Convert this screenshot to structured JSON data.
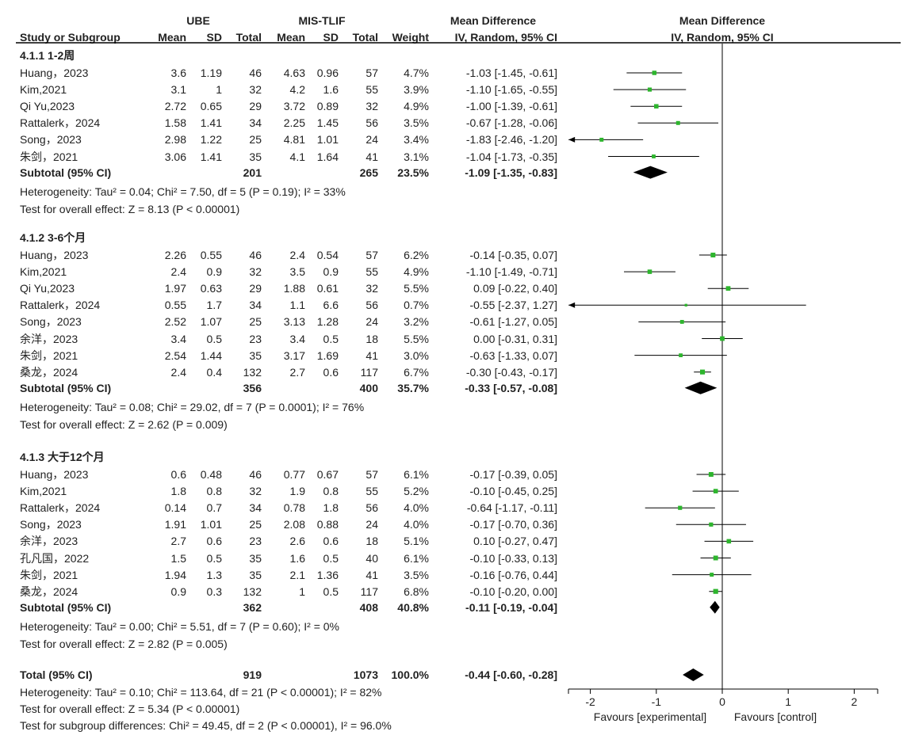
{
  "header": {
    "ube": "UBE",
    "mis": "MIS-TLIF",
    "md": "Mean Difference",
    "md_plot": "Mean Difference",
    "study": "Study or Subgroup",
    "mean1": "Mean",
    "sd1": "SD",
    "total1": "Total",
    "mean2": "Mean",
    "sd2": "SD",
    "total2": "Total",
    "weight": "Weight",
    "method": "IV, Random, 95% CI",
    "method_plot": "IV, Random, 95% CI"
  },
  "colors": {
    "square": "#2db52d",
    "diamond": "#000000",
    "line": "#000000"
  },
  "chart_data": {
    "type": "forest",
    "xlim": [
      -2,
      2
    ],
    "xticks": [
      "-2",
      "-1",
      "0",
      "1",
      "2"
    ],
    "xtick_values": [
      -2,
      -1,
      0,
      1,
      2
    ],
    "favours_left": "Favours [experimental]",
    "favours_right": "Favours [control]",
    "groups": [
      {
        "title": "4.1.1 1-2周",
        "studies": [
          {
            "name": "Huang，2023",
            "m1": "3.6",
            "sd1": "1.19",
            "n1": "46",
            "m2": "4.63",
            "sd2": "0.96",
            "n2": "57",
            "weight": "4.7%",
            "ci": "-1.03 [-1.45, -0.61]",
            "md": -1.03,
            "lo": -1.45,
            "hi": -0.61,
            "w": 4.7
          },
          {
            "name": "Kim,2021",
            "m1": "3.1",
            "sd1": "1",
            "n1": "32",
            "m2": "4.2",
            "sd2": "1.6",
            "n2": "55",
            "weight": "3.9%",
            "ci": "-1.10 [-1.65, -0.55]",
            "md": -1.1,
            "lo": -1.65,
            "hi": -0.55,
            "w": 3.9
          },
          {
            "name": "Qi Yu,2023",
            "m1": "2.72",
            "sd1": "0.65",
            "n1": "29",
            "m2": "3.72",
            "sd2": "0.89",
            "n2": "32",
            "weight": "4.9%",
            "ci": "-1.00 [-1.39, -0.61]",
            "md": -1.0,
            "lo": -1.39,
            "hi": -0.61,
            "w": 4.9
          },
          {
            "name": "Rattalerk，2024",
            "m1": "1.58",
            "sd1": "1.41",
            "n1": "34",
            "m2": "2.25",
            "sd2": "1.45",
            "n2": "56",
            "weight": "3.5%",
            "ci": "-0.67 [-1.28, -0.06]",
            "md": -0.67,
            "lo": -1.28,
            "hi": -0.06,
            "w": 3.5
          },
          {
            "name": "Song，2023",
            "m1": "2.98",
            "sd1": "1.22",
            "n1": "25",
            "m2": "4.81",
            "sd2": "1.01",
            "n2": "24",
            "weight": "3.4%",
            "ci": "-1.83 [-2.46, -1.20]",
            "md": -1.83,
            "lo": -2.46,
            "hi": -1.2,
            "w": 3.4
          },
          {
            "name": "朱剑，2021",
            "m1": "3.06",
            "sd1": "1.41",
            "n1": "35",
            "m2": "4.1",
            "sd2": "1.64",
            "n2": "41",
            "weight": "3.1%",
            "ci": "-1.04 [-1.73, -0.35]",
            "md": -1.04,
            "lo": -1.73,
            "hi": -0.35,
            "w": 3.1
          }
        ],
        "subtotal": {
          "label": "Subtotal (95% CI)",
          "n1": "201",
          "n2": "265",
          "weight": "23.5%",
          "ci": "-1.09 [-1.35, -0.83]",
          "md": -1.09,
          "lo": -1.35,
          "hi": -0.83
        },
        "heterogeneity": "Heterogeneity: Tau² = 0.04; Chi² = 7.50, df = 5 (P = 0.19); I² = 33%",
        "overall": "Test for overall effect: Z = 8.13 (P < 0.00001)"
      },
      {
        "title": "4.1.2 3-6个月",
        "studies": [
          {
            "name": "Huang，2023",
            "m1": "2.26",
            "sd1": "0.55",
            "n1": "46",
            "m2": "2.4",
            "sd2": "0.54",
            "n2": "57",
            "weight": "6.2%",
            "ci": "-0.14 [-0.35, 0.07]",
            "md": -0.14,
            "lo": -0.35,
            "hi": 0.07,
            "w": 6.2
          },
          {
            "name": "Kim,2021",
            "m1": "2.4",
            "sd1": "0.9",
            "n1": "32",
            "m2": "3.5",
            "sd2": "0.9",
            "n2": "55",
            "weight": "4.9%",
            "ci": "-1.10 [-1.49, -0.71]",
            "md": -1.1,
            "lo": -1.49,
            "hi": -0.71,
            "w": 4.9
          },
          {
            "name": "Qi Yu,2023",
            "m1": "1.97",
            "sd1": "0.63",
            "n1": "29",
            "m2": "1.88",
            "sd2": "0.61",
            "n2": "32",
            "weight": "5.5%",
            "ci": "0.09 [-0.22, 0.40]",
            "md": 0.09,
            "lo": -0.22,
            "hi": 0.4,
            "w": 5.5
          },
          {
            "name": "Rattalerk，2024",
            "m1": "0.55",
            "sd1": "1.7",
            "n1": "34",
            "m2": "1.1",
            "sd2": "6.6",
            "n2": "56",
            "weight": "0.7%",
            "ci": "-0.55 [-2.37, 1.27]",
            "md": -0.55,
            "lo": -2.37,
            "hi": 1.27,
            "w": 0.7
          },
          {
            "name": "Song，2023",
            "m1": "2.52",
            "sd1": "1.07",
            "n1": "25",
            "m2": "3.13",
            "sd2": "1.28",
            "n2": "24",
            "weight": "3.2%",
            "ci": "-0.61 [-1.27, 0.05]",
            "md": -0.61,
            "lo": -1.27,
            "hi": 0.05,
            "w": 3.2
          },
          {
            "name": "余洋，2023",
            "m1": "3.4",
            "sd1": "0.5",
            "n1": "23",
            "m2": "3.4",
            "sd2": "0.5",
            "n2": "18",
            "weight": "5.5%",
            "ci": "0.00 [-0.31, 0.31]",
            "md": 0.0,
            "lo": -0.31,
            "hi": 0.31,
            "w": 5.5
          },
          {
            "name": "朱剑，2021",
            "m1": "2.54",
            "sd1": "1.44",
            "n1": "35",
            "m2": "3.17",
            "sd2": "1.69",
            "n2": "41",
            "weight": "3.0%",
            "ci": "-0.63 [-1.33, 0.07]",
            "md": -0.63,
            "lo": -1.33,
            "hi": 0.07,
            "w": 3.0
          },
          {
            "name": "桑龙，2024",
            "m1": "2.4",
            "sd1": "0.4",
            "n1": "132",
            "m2": "2.7",
            "sd2": "0.6",
            "n2": "117",
            "weight": "6.7%",
            "ci": "-0.30 [-0.43, -0.17]",
            "md": -0.3,
            "lo": -0.43,
            "hi": -0.17,
            "w": 6.7
          }
        ],
        "subtotal": {
          "label": "Subtotal (95% CI)",
          "n1": "356",
          "n2": "400",
          "weight": "35.7%",
          "ci": "-0.33 [-0.57, -0.08]",
          "md": -0.33,
          "lo": -0.57,
          "hi": -0.08
        },
        "heterogeneity": "Heterogeneity: Tau² = 0.08; Chi² = 29.02, df = 7 (P = 0.0001); I² = 76%",
        "overall": "Test for overall effect: Z = 2.62 (P = 0.009)"
      },
      {
        "title": "4.1.3 大于12个月",
        "studies": [
          {
            "name": "Huang，2023",
            "m1": "0.6",
            "sd1": "0.48",
            "n1": "46",
            "m2": "0.77",
            "sd2": "0.67",
            "n2": "57",
            "weight": "6.1%",
            "ci": "-0.17 [-0.39, 0.05]",
            "md": -0.17,
            "lo": -0.39,
            "hi": 0.05,
            "w": 6.1
          },
          {
            "name": "Kim,2021",
            "m1": "1.8",
            "sd1": "0.8",
            "n1": "32",
            "m2": "1.9",
            "sd2": "0.8",
            "n2": "55",
            "weight": "5.2%",
            "ci": "-0.10 [-0.45, 0.25]",
            "md": -0.1,
            "lo": -0.45,
            "hi": 0.25,
            "w": 5.2
          },
          {
            "name": "Rattalerk，2024",
            "m1": "0.14",
            "sd1": "0.7",
            "n1": "34",
            "m2": "0.78",
            "sd2": "1.8",
            "n2": "56",
            "weight": "4.0%",
            "ci": "-0.64 [-1.17, -0.11]",
            "md": -0.64,
            "lo": -1.17,
            "hi": -0.11,
            "w": 4.0
          },
          {
            "name": "Song，2023",
            "m1": "1.91",
            "sd1": "1.01",
            "n1": "25",
            "m2": "2.08",
            "sd2": "0.88",
            "n2": "24",
            "weight": "4.0%",
            "ci": "-0.17 [-0.70, 0.36]",
            "md": -0.17,
            "lo": -0.7,
            "hi": 0.36,
            "w": 4.0
          },
          {
            "name": "余洋，2023",
            "m1": "2.7",
            "sd1": "0.6",
            "n1": "23",
            "m2": "2.6",
            "sd2": "0.6",
            "n2": "18",
            "weight": "5.1%",
            "ci": "0.10 [-0.27, 0.47]",
            "md": 0.1,
            "lo": -0.27,
            "hi": 0.47,
            "w": 5.1
          },
          {
            "name": "孔凡国，2022",
            "m1": "1.5",
            "sd1": "0.5",
            "n1": "35",
            "m2": "1.6",
            "sd2": "0.5",
            "n2": "40",
            "weight": "6.1%",
            "ci": "-0.10 [-0.33, 0.13]",
            "md": -0.1,
            "lo": -0.33,
            "hi": 0.13,
            "w": 6.1
          },
          {
            "name": "朱剑，2021",
            "m1": "1.94",
            "sd1": "1.3",
            "n1": "35",
            "m2": "2.1",
            "sd2": "1.36",
            "n2": "41",
            "weight": "3.5%",
            "ci": "-0.16 [-0.76, 0.44]",
            "md": -0.16,
            "lo": -0.76,
            "hi": 0.44,
            "w": 3.5
          },
          {
            "name": "桑龙，2024",
            "m1": "0.9",
            "sd1": "0.3",
            "n1": "132",
            "m2": "1",
            "sd2": "0.5",
            "n2": "117",
            "weight": "6.8%",
            "ci": "-0.10 [-0.20, 0.00]",
            "md": -0.1,
            "lo": -0.2,
            "hi": 0.0,
            "w": 6.8
          }
        ],
        "subtotal": {
          "label": "Subtotal (95% CI)",
          "n1": "362",
          "n2": "408",
          "weight": "40.8%",
          "ci": "-0.11 [-0.19, -0.04]",
          "md": -0.11,
          "lo": -0.19,
          "hi": -0.04
        },
        "heterogeneity": "Heterogeneity: Tau² = 0.00; Chi² = 5.51, df = 7 (P = 0.60); I² = 0%",
        "overall": "Test for overall effect: Z = 2.82 (P = 0.005)"
      }
    ],
    "total": {
      "label": "Total (95% CI)",
      "n1": "919",
      "n2": "1073",
      "weight": "100.0%",
      "ci": "-0.44 [-0.60, -0.28]",
      "md": -0.44,
      "lo": -0.6,
      "hi": -0.28
    },
    "total_heterogeneity": "Heterogeneity: Tau² = 0.10; Chi² = 113.64, df = 21 (P < 0.00001); I² = 82%",
    "total_overall": "Test for overall effect: Z = 5.34 (P < 0.00001)",
    "subgroup_diff": "Test for subgroup differences: Chi² = 49.45, df = 2 (P < 0.00001), I² = 96.0%"
  }
}
